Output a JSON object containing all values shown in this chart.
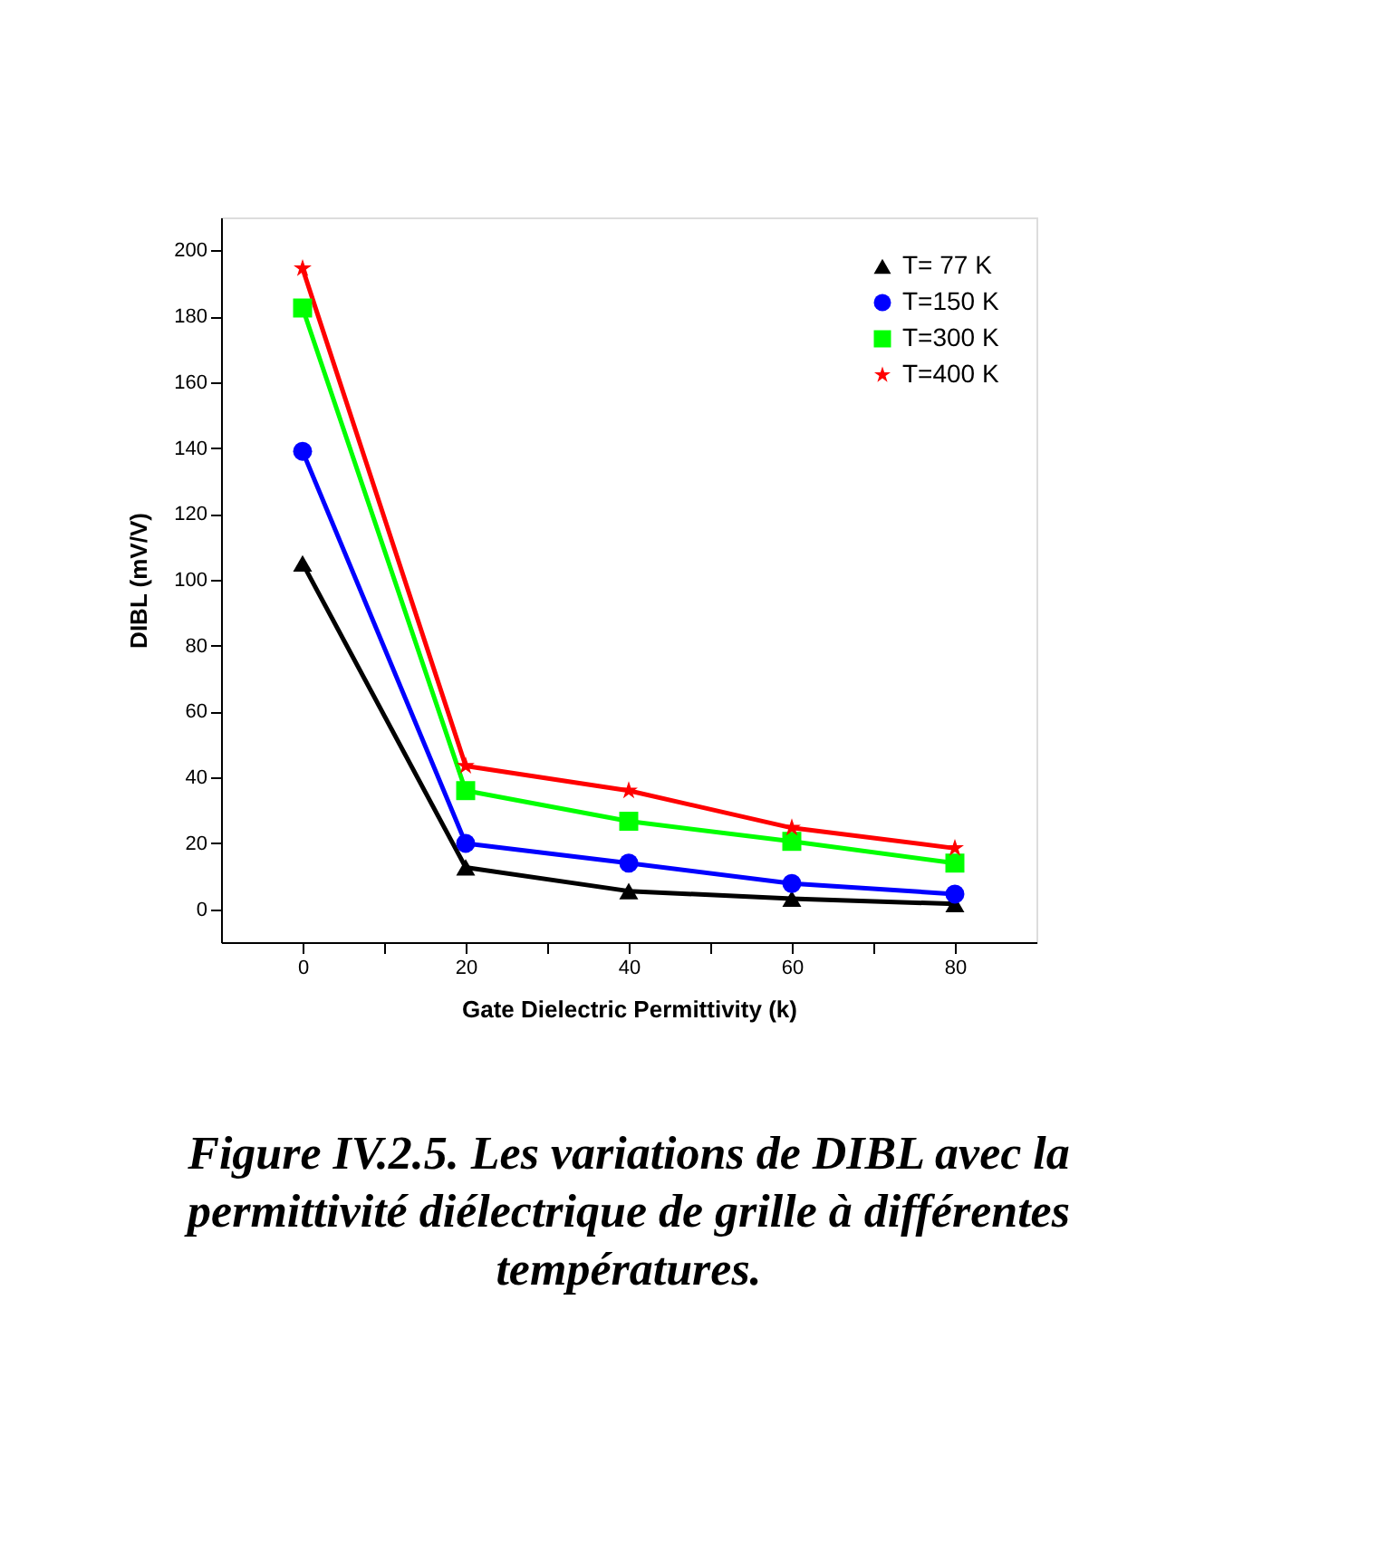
{
  "chart_data": {
    "type": "line",
    "xlabel": "Gate Dielectric Permittivity (k)",
    "ylabel": "DIBL (mV/V)",
    "x": [
      0,
      20,
      40,
      60,
      80
    ],
    "series": [
      {
        "name": "T=  77 K",
        "color": "#000000",
        "marker": "triangle",
        "values": [
          105,
          12.7,
          5.5,
          3.2,
          1.6
        ]
      },
      {
        "name": "T=150 K",
        "color": "#0000ff",
        "marker": "circle",
        "values": [
          139,
          20,
          14,
          7.8,
          4.6
        ]
      },
      {
        "name": "T=300 K",
        "color": "#00ff00",
        "marker": "square",
        "values": [
          182.5,
          36,
          26.7,
          20.6,
          14
        ]
      },
      {
        "name": "T=400 K",
        "color": "#ff0000",
        "marker": "star",
        "values": [
          194.5,
          43.5,
          36,
          24.7,
          18.5
        ]
      }
    ],
    "xlim": [
      -10,
      90
    ],
    "xticks": [
      0,
      {
        "value": 10,
        "label": null
      },
      20,
      {
        "value": 30,
        "label": null
      },
      40,
      {
        "value": 50,
        "label": null
      },
      60,
      {
        "value": 70,
        "label": null
      },
      80
    ],
    "ylim": [
      -10,
      210
    ],
    "yticks": [
      0,
      20,
      40,
      60,
      80,
      100,
      120,
      140,
      160,
      180,
      200
    ],
    "grid": false,
    "legend": "top right",
    "line_style": "solid",
    "annotations": [
      "Figure IV.2.5. Les variations de DIBL avec la\npermittivité diélectrique de grille à différentes\ntempératures."
    ]
  }
}
